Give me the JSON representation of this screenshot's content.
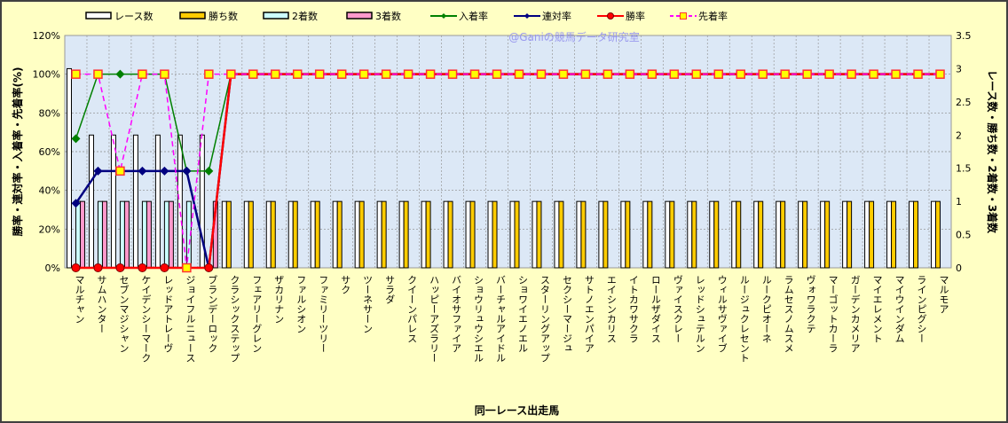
{
  "chart_data": {
    "type": "bar+line",
    "watermark": "@Ganiの競馬データ研究室",
    "xlabel": "同一レース出走馬",
    "ylabel_left": "勝率・連対率・入着率・先着率(%)",
    "ylabel_right": "レース数・勝ち数・2着数・3着数",
    "ylim_left": [
      0,
      120
    ],
    "ylim_right": [
      0,
      3.5
    ],
    "yticks_left": [
      "0%",
      "20%",
      "40%",
      "60%",
      "80%",
      "100%",
      "120%"
    ],
    "yticks_right": [
      "0",
      "0.5",
      "1",
      "1.5",
      "2",
      "2.5",
      "3",
      "3.5"
    ],
    "grid": true,
    "legend_position": "top",
    "categories": [
      "マルチャン",
      "サムハンター",
      "セブンマジシャン",
      "ケイデンシーマーク",
      "レッドアトレーヴ",
      "ジョイフルニュース",
      "ブランデーロック",
      "クラシックステップ",
      "フェアリーグレン",
      "ザカリナン",
      "ファルシオン",
      "ファミリーツリー",
      "サク",
      "ツーネサーン",
      "サラダ",
      "クイーンパレス",
      "ハッピーアズラリー",
      "バイオサファイア",
      "ショウリュウシエル",
      "バーチャルアイドル",
      "ショワイエノエル",
      "スターリングアップ",
      "セクシーマージュ",
      "サトノエンパイア",
      "エイシンカリス",
      "イトカワサクラ",
      "ロールザダイス",
      "ヴァイスクレー",
      "レッドシュテルン",
      "ウィルサヴァイブ",
      "ルージュクレセント",
      "ルークピオーネ",
      "ラムセスノムスメ",
      "ヴォワラクテ",
      "マーゴットカーラ",
      "ガーデンカメリア",
      "マイエレメント",
      "マイウインダム",
      "ラインピグシー",
      "マルモア"
    ],
    "bar_series": [
      {
        "name": "レース数",
        "color": "#FFFFFF",
        "axis": "right",
        "values": [
          3,
          2,
          2,
          2,
          2,
          2,
          2,
          1,
          1,
          1,
          1,
          1,
          1,
          1,
          1,
          1,
          1,
          1,
          1,
          1,
          1,
          1,
          1,
          1,
          1,
          1,
          1,
          1,
          1,
          1,
          1,
          1,
          1,
          1,
          1,
          1,
          1,
          1,
          1,
          1
        ]
      },
      {
        "name": "勝ち数",
        "color": "#FFCC00",
        "axis": "right",
        "values": [
          0,
          0,
          0,
          0,
          0,
          0,
          0,
          1,
          1,
          1,
          1,
          1,
          1,
          1,
          1,
          1,
          1,
          1,
          1,
          1,
          1,
          1,
          1,
          1,
          1,
          1,
          1,
          1,
          1,
          1,
          1,
          1,
          1,
          1,
          1,
          1,
          1,
          1,
          1,
          1
        ]
      },
      {
        "name": "2着数",
        "color": "#CCFFFF",
        "axis": "right",
        "values": [
          1,
          1,
          1,
          1,
          1,
          1,
          0,
          0,
          0,
          0,
          0,
          0,
          0,
          0,
          0,
          0,
          0,
          0,
          0,
          0,
          0,
          0,
          0,
          0,
          0,
          0,
          0,
          0,
          0,
          0,
          0,
          0,
          0,
          0,
          0,
          0,
          0,
          0,
          0,
          0
        ]
      },
      {
        "name": "3着数",
        "color": "#FF99CC",
        "axis": "right",
        "values": [
          1,
          1,
          1,
          1,
          1,
          0,
          1,
          0,
          0,
          0,
          0,
          0,
          0,
          0,
          0,
          0,
          0,
          0,
          0,
          0,
          0,
          0,
          0,
          0,
          0,
          0,
          0,
          0,
          0,
          0,
          0,
          0,
          0,
          0,
          0,
          0,
          0,
          0,
          0,
          0
        ]
      }
    ],
    "line_series": [
      {
        "name": "入着率",
        "color": "#008000",
        "marker": "diamond",
        "dash": false,
        "values": [
          66.7,
          100,
          100,
          100,
          100,
          50,
          50,
          100,
          100,
          100,
          100,
          100,
          100,
          100,
          100,
          100,
          100,
          100,
          100,
          100,
          100,
          100,
          100,
          100,
          100,
          100,
          100,
          100,
          100,
          100,
          100,
          100,
          100,
          100,
          100,
          100,
          100,
          100,
          100,
          100
        ]
      },
      {
        "name": "連対率",
        "color": "#000080",
        "marker": "diamond",
        "dash": false,
        "values": [
          33.3,
          50,
          50,
          50,
          50,
          50,
          0,
          100,
          100,
          100,
          100,
          100,
          100,
          100,
          100,
          100,
          100,
          100,
          100,
          100,
          100,
          100,
          100,
          100,
          100,
          100,
          100,
          100,
          100,
          100,
          100,
          100,
          100,
          100,
          100,
          100,
          100,
          100,
          100,
          100
        ]
      },
      {
        "name": "勝率",
        "color": "#FF0000",
        "marker": "circle",
        "dash": false,
        "values": [
          0,
          0,
          0,
          0,
          0,
          0,
          0,
          100,
          100,
          100,
          100,
          100,
          100,
          100,
          100,
          100,
          100,
          100,
          100,
          100,
          100,
          100,
          100,
          100,
          100,
          100,
          100,
          100,
          100,
          100,
          100,
          100,
          100,
          100,
          100,
          100,
          100,
          100,
          100,
          100
        ]
      },
      {
        "name": "先着率",
        "color": "#FF00FF",
        "marker": "square",
        "dash": true,
        "values": [
          100,
          100,
          50,
          100,
          100,
          0,
          100,
          100,
          100,
          100,
          100,
          100,
          100,
          100,
          100,
          100,
          100,
          100,
          100,
          100,
          100,
          100,
          100,
          100,
          100,
          100,
          100,
          100,
          100,
          100,
          100,
          100,
          100,
          100,
          100,
          100,
          100,
          100,
          100,
          100
        ]
      }
    ]
  }
}
